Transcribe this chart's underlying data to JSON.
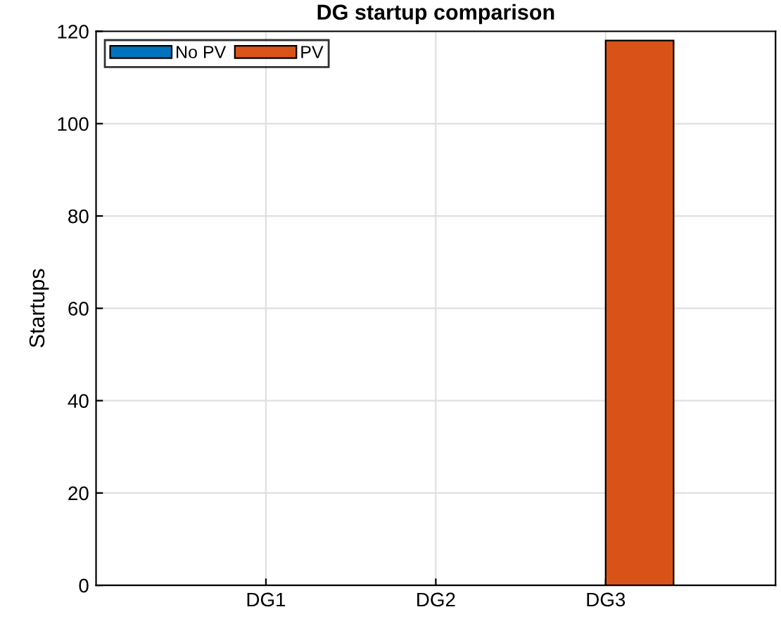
{
  "chart_data": {
    "type": "bar",
    "title": "DG startup comparison",
    "ylabel": "Startups",
    "categories": [
      "DG1",
      "DG2",
      "DG3"
    ],
    "series": [
      {
        "name": "No PV",
        "color": "#0072bd",
        "values": [
          0,
          0,
          0
        ]
      },
      {
        "name": "PV",
        "color": "#d95319",
        "values": [
          0,
          0,
          118
        ]
      }
    ],
    "ylim": [
      0,
      120
    ],
    "yticks": [
      0,
      20,
      40,
      60,
      80,
      100,
      120
    ],
    "grid": true,
    "legend": "top left"
  }
}
